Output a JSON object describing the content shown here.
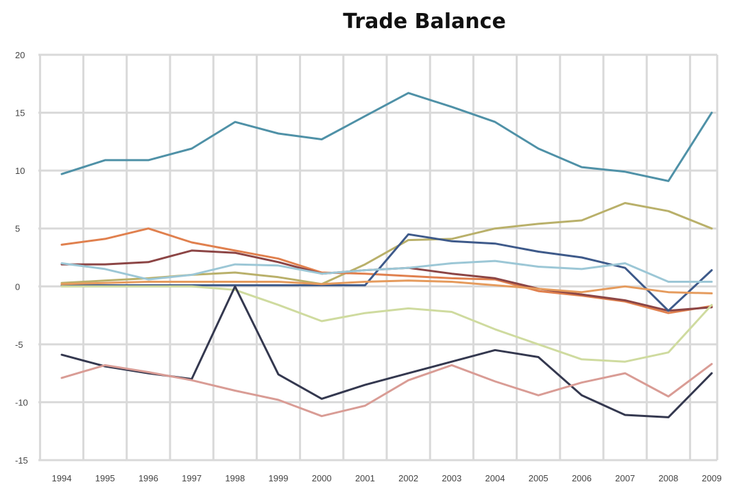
{
  "chart_data": {
    "type": "line",
    "title": "Trade Balance",
    "xlabel": "",
    "ylabel": "",
    "x": [
      "1994",
      "1995",
      "1996",
      "1997",
      "1998",
      "1999",
      "2000",
      "2001",
      "2002",
      "2003",
      "2004",
      "2005",
      "2006",
      "2007",
      "2008",
      "2009"
    ],
    "ylim": [
      -15,
      20
    ],
    "yticks": [
      20,
      15,
      10,
      5,
      0,
      -5,
      -10,
      -15
    ],
    "grid": true,
    "legend": "none",
    "series": [
      {
        "color": "#4f91a7",
        "values": [
          9.7,
          10.9,
          10.9,
          11.9,
          14.2,
          13.2,
          12.7,
          14.7,
          16.7,
          15.5,
          14.2,
          11.9,
          10.3,
          9.9,
          9.1,
          15.0
        ]
      },
      {
        "color": "#b9b06a",
        "values": [
          0.3,
          0.5,
          0.7,
          1.0,
          1.2,
          0.8,
          0.2,
          1.9,
          4.0,
          4.1,
          5.0,
          5.4,
          5.7,
          7.2,
          6.5,
          5.0
        ]
      },
      {
        "color": "#e0804e",
        "values": [
          3.6,
          4.1,
          5.0,
          3.8,
          3.1,
          2.4,
          1.2,
          1.1,
          0.9,
          0.7,
          0.6,
          -0.4,
          -0.8,
          -1.3,
          -2.3,
          -1.7
        ]
      },
      {
        "color": "#8c4545",
        "values": [
          1.9,
          1.9,
          2.1,
          3.1,
          2.9,
          2.1,
          1.1,
          1.4,
          1.6,
          1.1,
          0.7,
          -0.2,
          -0.7,
          -1.2,
          -2.1,
          -1.8
        ]
      },
      {
        "color": "#3e5a8a",
        "values": [
          0.1,
          0.1,
          0.1,
          0.1,
          0.1,
          0.1,
          0.1,
          0.1,
          4.5,
          3.9,
          3.7,
          3.0,
          2.5,
          1.6,
          -2.1,
          1.4
        ]
      },
      {
        "color": "#9cc7d6",
        "values": [
          2.0,
          1.5,
          0.6,
          1.0,
          1.9,
          1.8,
          1.1,
          1.4,
          1.6,
          2.0,
          2.2,
          1.7,
          1.5,
          2.0,
          0.4,
          0.4
        ]
      },
      {
        "color": "#e59b5d",
        "values": [
          0.2,
          0.3,
          0.4,
          0.4,
          0.4,
          0.4,
          0.2,
          0.4,
          0.5,
          0.4,
          0.1,
          -0.2,
          -0.5,
          0.0,
          -0.5,
          -0.6
        ]
      },
      {
        "color": "#cfdb9f",
        "values": [
          0.0,
          0.0,
          0.0,
          0.0,
          -0.3,
          -1.6,
          -3.0,
          -2.3,
          -1.9,
          -2.2,
          -3.7,
          -5.0,
          -6.3,
          -6.5,
          -5.7,
          -1.6
        ]
      },
      {
        "color": "#34384f",
        "values": [
          -5.9,
          -6.9,
          -7.5,
          -8.0,
          0.0,
          -7.6,
          -9.7,
          -8.5,
          -7.5,
          -6.5,
          -5.5,
          -6.1,
          -9.4,
          -11.1,
          -11.3,
          -7.5
        ]
      },
      {
        "color": "#d99c95",
        "values": [
          -7.9,
          -6.8,
          -7.4,
          -8.1,
          -9.0,
          -9.8,
          -11.2,
          -10.3,
          -8.1,
          -6.8,
          -8.2,
          -9.4,
          -8.3,
          -7.5,
          -9.5,
          -6.7
        ]
      }
    ]
  }
}
